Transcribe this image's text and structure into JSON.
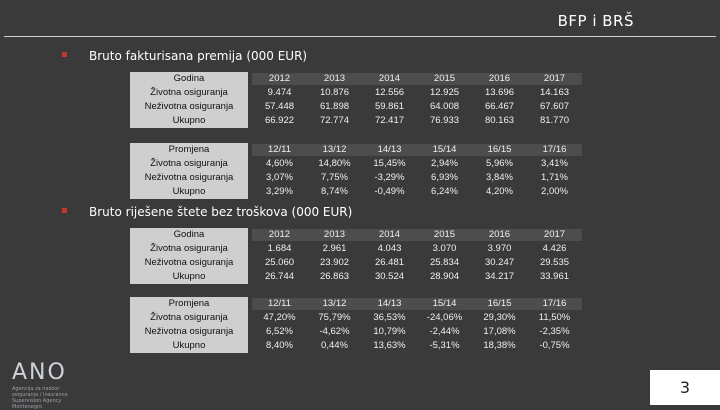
{
  "header": {
    "brand": "BFP i BRŠ"
  },
  "section1": {
    "title": "Bruto fakturisana premija (000 EUR)",
    "table_a": {
      "labels": [
        "Godina",
        "Životna osiguranja",
        "Neživotna osiguranja",
        "Ukupno"
      ],
      "years": [
        "2012",
        "2013",
        "2014",
        "2015",
        "2016",
        "2017"
      ],
      "rows": [
        [
          "9.474",
          "10.876",
          "12.556",
          "12.925",
          "13.696",
          "14.163"
        ],
        [
          "57.448",
          "61.898",
          "59.861",
          "64.008",
          "66.467",
          "67.607"
        ],
        [
          "66.922",
          "72.774",
          "72.417",
          "76.933",
          "80.163",
          "81.770"
        ]
      ]
    },
    "table_b": {
      "labels": [
        "Promjena",
        "Životna osiguranja",
        "Neživotna osiguranja",
        "Ukupno"
      ],
      "periods": [
        "12/11",
        "13/12",
        "14/13",
        "15/14",
        "16/15",
        "17/16"
      ],
      "rows": [
        [
          "4,60%",
          "14,80%",
          "15,45%",
          "2,94%",
          "5,96%",
          "3,41%"
        ],
        [
          "3,07%",
          "7,75%",
          "-3,29%",
          "6,93%",
          "3,84%",
          "1,71%"
        ],
        [
          "3,29%",
          "8,74%",
          "-0,49%",
          "6,24%",
          "4,20%",
          "2,00%"
        ]
      ]
    }
  },
  "section2": {
    "title": "Bruto riješene štete bez troškova (000 EUR)",
    "table_a": {
      "labels": [
        "Godina",
        "Životna osiguranja",
        "Neživotna osiguranja",
        "Ukupno"
      ],
      "years": [
        "2012",
        "2013",
        "2014",
        "2015",
        "2016",
        "2017"
      ],
      "rows": [
        [
          "1.684",
          "2.961",
          "4.043",
          "3.070",
          "3.970",
          "4.426"
        ],
        [
          "25.060",
          "23.902",
          "26.481",
          "25.834",
          "30.247",
          "29.535"
        ],
        [
          "26.744",
          "26.863",
          "30.524",
          "28.904",
          "34.217",
          "33.961"
        ]
      ]
    },
    "table_b": {
      "labels": [
        "Promjena",
        "Životna osiguranja",
        "Neživotna osiguranja",
        "Ukupno"
      ],
      "periods": [
        "12/11",
        "13/12",
        "14/13",
        "15/14",
        "16/15",
        "17/16"
      ],
      "rows": [
        [
          "47,20%",
          "75,79%",
          "36,53%",
          "-24,06%",
          "29,30%",
          "11,50%"
        ],
        [
          "6,52%",
          "-4,62%",
          "10,79%",
          "-2,44%",
          "17,08%",
          "-2,35%"
        ],
        [
          "8,40%",
          "0,44%",
          "13,63%",
          "-5,31%",
          "18,38%",
          "-0,75%"
        ]
      ]
    }
  },
  "footer": {
    "logo_text": "ANO",
    "logo_subtitle": "Agencija za nadzor osiguranja / Insurance Supervision Agency Montenegro",
    "page_number": "3"
  },
  "colors": {
    "background": "#3a3a3a",
    "label_fill": "#cfcfcf",
    "bullet": "#c0392b"
  }
}
